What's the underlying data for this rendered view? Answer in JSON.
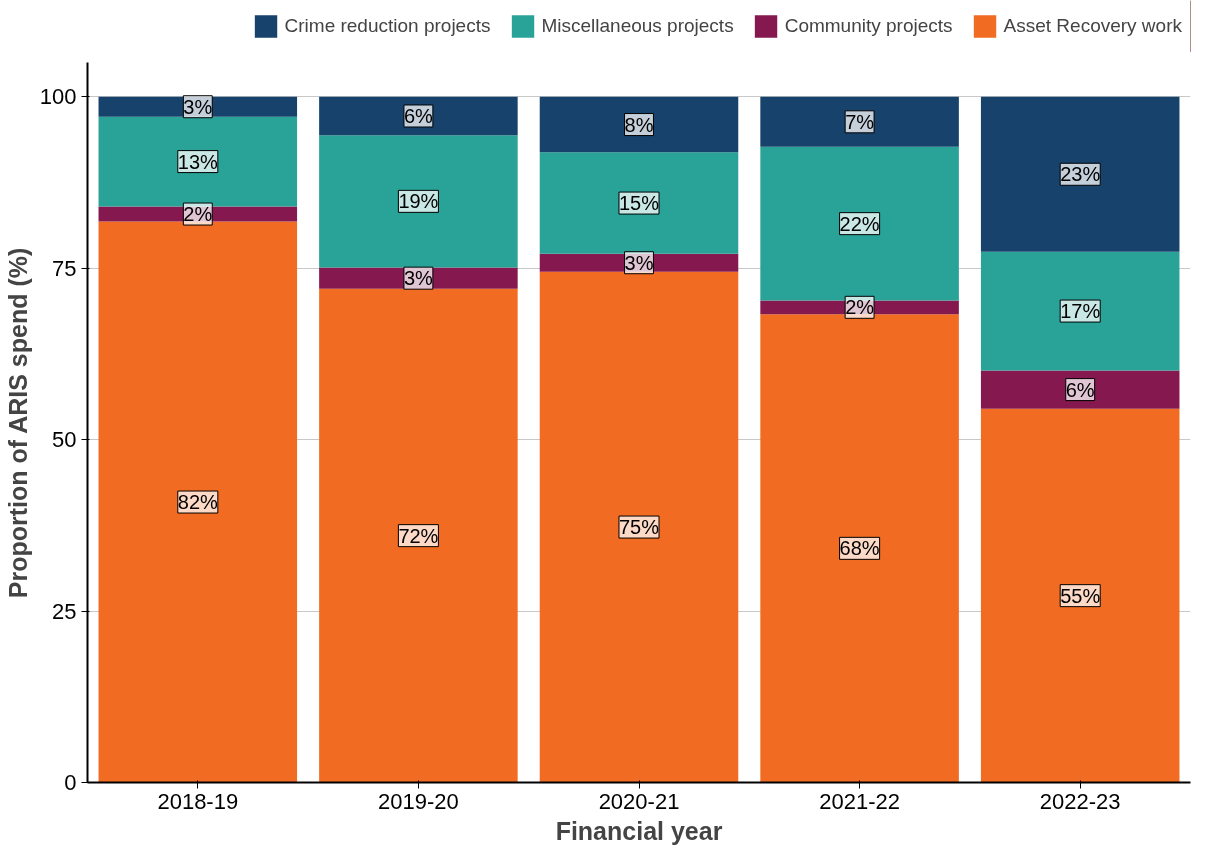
{
  "chart_data": {
    "type": "bar",
    "stacked": true,
    "xlabel": "Financial year",
    "ylabel": "Proportion of ARIS spend (%)",
    "categories": [
      "2018-19",
      "2019-20",
      "2020-21",
      "2021-22",
      "2022-23"
    ],
    "series": [
      {
        "name": "Asset Recovery work",
        "color": "#f26b22",
        "values": [
          81.8,
          72.0,
          74.5,
          68.3,
          54.5
        ],
        "value_labels": [
          "82%",
          "72%",
          "75%",
          "68%",
          "55%"
        ]
      },
      {
        "name": "Community projects",
        "color": "#85184e",
        "values": [
          2.2,
          3.1,
          2.6,
          2.0,
          5.6
        ],
        "value_labels": [
          "2%",
          "3%",
          "3%",
          "2%",
          "6%"
        ]
      },
      {
        "name": "Miscellaneous projects",
        "color": "#29a398",
        "values": [
          13.1,
          19.3,
          14.8,
          22.4,
          17.3
        ],
        "value_labels": [
          "13%",
          "19%",
          "15%",
          "22%",
          "17%"
        ]
      },
      {
        "name": "Crime reduction projects",
        "color": "#16426b",
        "values": [
          2.9,
          5.6,
          8.1,
          7.3,
          22.6
        ],
        "value_labels": [
          "3%",
          "6%",
          "8%",
          "7%",
          "23%"
        ]
      }
    ],
    "ylim": [
      0,
      105
    ],
    "yticks": [
      0,
      25,
      50,
      75,
      100
    ],
    "grid": "y",
    "legend": "top"
  }
}
